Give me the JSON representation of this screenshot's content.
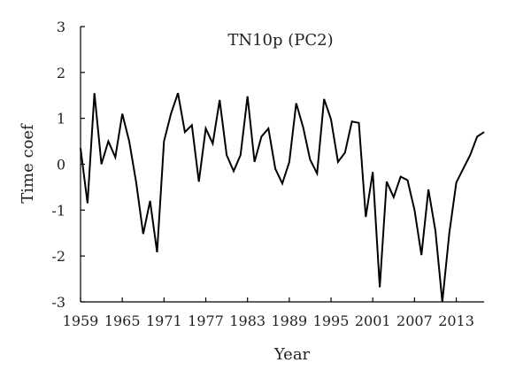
{
  "chart_data": {
    "type": "line",
    "title": "TN10p (PC2)",
    "xlabel": "Year",
    "ylabel": "Time coef",
    "xlim": [
      1959,
      2017
    ],
    "ylim": [
      -3,
      3
    ],
    "xticks": [
      1959,
      1965,
      1971,
      1977,
      1983,
      1989,
      1995,
      2001,
      2007,
      2013
    ],
    "yticks": [
      -3,
      -2,
      -1,
      0,
      1,
      2,
      3
    ],
    "grid": false,
    "legend": "none",
    "line_color": "#000000",
    "series": [
      {
        "x": [
          1959,
          1960,
          1961,
          1962,
          1963,
          1964,
          1965,
          1966,
          1967,
          1968,
          1969,
          1970,
          1971,
          1972,
          1973,
          1974,
          1975,
          1976,
          1977,
          1978,
          1979,
          1980,
          1981,
          1982,
          1983,
          1984,
          1985,
          1986,
          1987,
          1988,
          1989,
          1990,
          1991,
          1992,
          1993,
          1994,
          1995,
          1996,
          1997,
          1998,
          1999,
          2000,
          2001,
          2002,
          2003,
          2004,
          2005,
          2006,
          2007,
          2008,
          2009,
          2010,
          2011,
          2012,
          2013,
          2014,
          2015,
          2016,
          2017
        ],
        "values": [
          0.35,
          -0.85,
          1.55,
          0.0,
          0.5,
          0.15,
          1.1,
          0.5,
          -0.4,
          -1.52,
          -0.8,
          -1.92,
          0.5,
          1.1,
          1.55,
          0.7,
          0.85,
          -0.38,
          0.78,
          0.45,
          1.4,
          0.2,
          -0.15,
          0.2,
          1.48,
          0.05,
          0.6,
          0.78,
          -0.1,
          -0.42,
          0.05,
          1.33,
          0.8,
          0.1,
          -0.2,
          1.42,
          0.98,
          0.05,
          0.25,
          0.93,
          0.9,
          -1.15,
          -0.17,
          -2.68,
          -0.38,
          -0.72,
          -0.27,
          -0.35,
          -1.0,
          -1.98,
          -0.55,
          -1.45,
          -3.0,
          -1.5,
          -0.4,
          -0.1,
          0.2,
          0.6,
          0.7
        ]
      }
    ]
  }
}
